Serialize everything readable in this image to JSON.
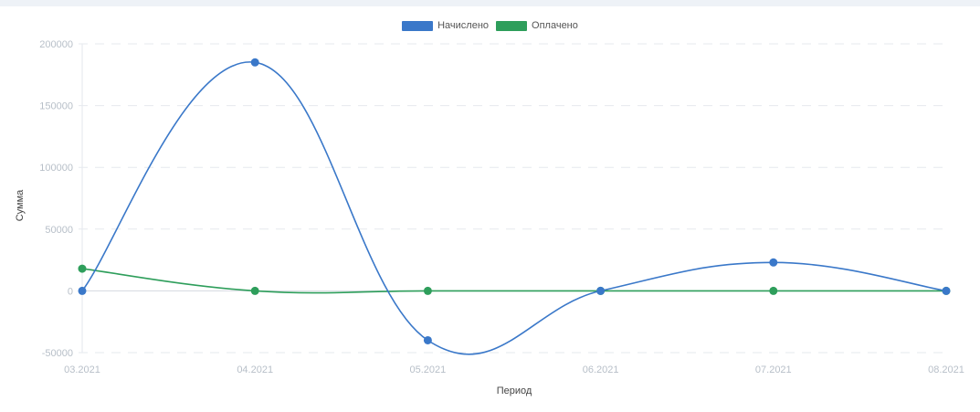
{
  "chart_data": {
    "type": "line",
    "title": "",
    "xlabel": "Период",
    "ylabel": "Сумма",
    "categories": [
      "03.2021",
      "04.2021",
      "05.2021",
      "06.2021",
      "07.2021",
      "08.2021"
    ],
    "ylim": [
      -50000,
      200000
    ],
    "yticks": [
      200000,
      150000,
      100000,
      50000,
      0,
      -50000
    ],
    "grid": true,
    "legend_position": "top-center",
    "series": [
      {
        "name": "Начислено",
        "color": "#3a78c9",
        "values": [
          0,
          185000,
          -40000,
          0,
          23000,
          0
        ]
      },
      {
        "name": "Оплачено",
        "color": "#2e9e5b",
        "values": [
          18000,
          0,
          0,
          0,
          0,
          0
        ]
      }
    ]
  }
}
